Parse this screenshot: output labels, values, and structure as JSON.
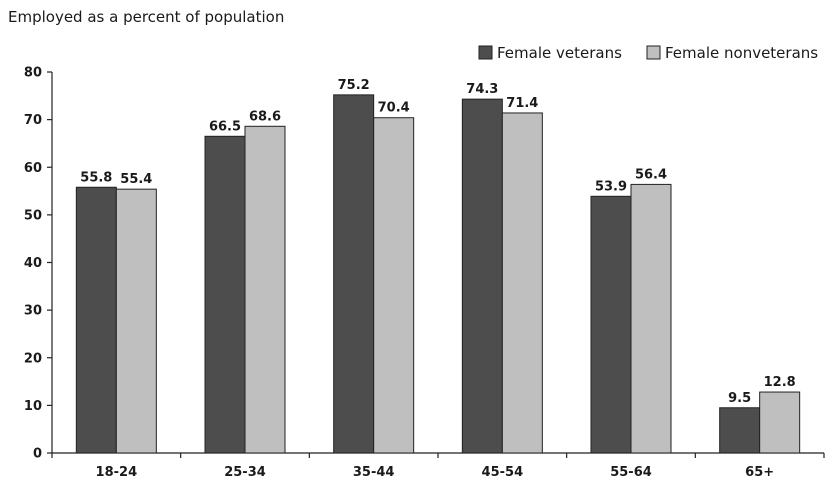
{
  "chart_data": {
    "type": "bar",
    "title": "Employed as a percent of population",
    "xlabel": "",
    "ylabel": "",
    "categories": [
      "18-24",
      "25-34",
      "35-44",
      "45-54",
      "55-64",
      "65+"
    ],
    "series": [
      {
        "name": "Female veterans",
        "values": [
          55.8,
          66.5,
          75.2,
          74.3,
          53.9,
          9.5
        ],
        "labels": [
          "55.8",
          "66.5",
          "75.2",
          "74.3",
          "53.9",
          "9.5"
        ],
        "color": "#4d4d4d"
      },
      {
        "name": "Female nonveterans",
        "values": [
          55.4,
          68.6,
          70.4,
          71.4,
          56.4,
          12.8
        ],
        "labels": [
          "55.4",
          "68.6",
          "70.4",
          "71.4",
          "56.4",
          "12.8"
        ],
        "color": "#bfbfbf"
      }
    ],
    "ylim": [
      0,
      80
    ],
    "yticks": [
      "0",
      "10",
      "20",
      "30",
      "40",
      "50",
      "60",
      "70",
      "80"
    ],
    "grid": false,
    "legend": "top-right"
  }
}
